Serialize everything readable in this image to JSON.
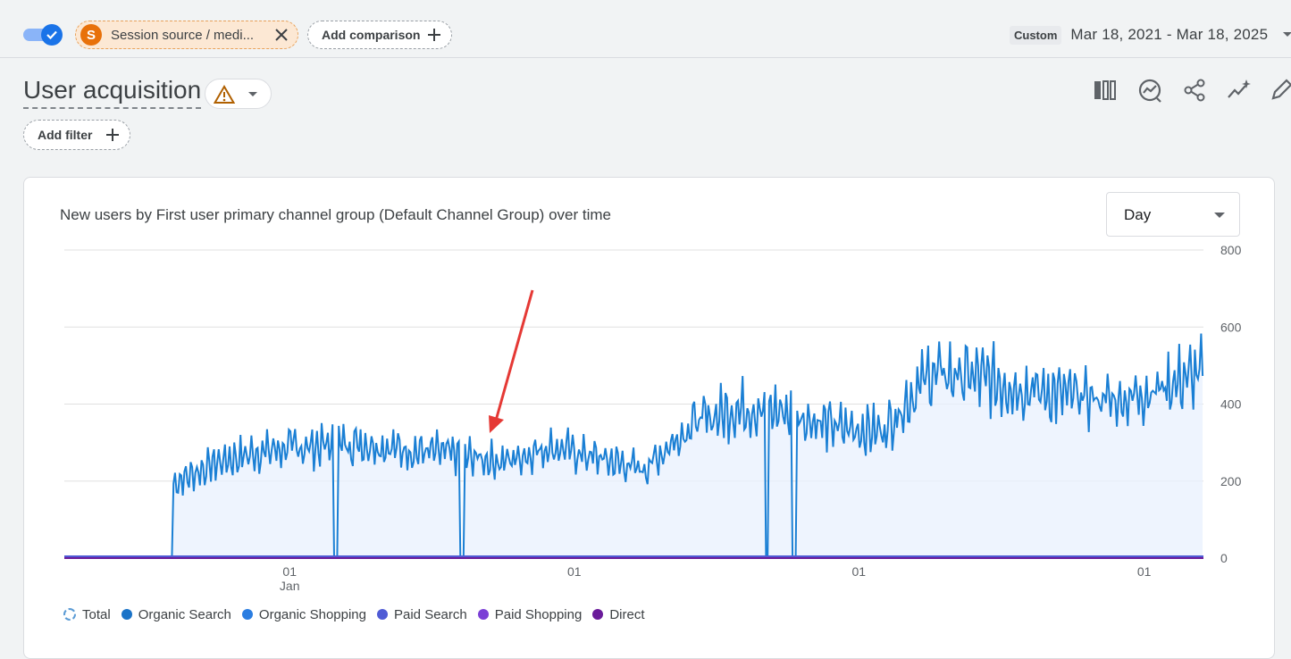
{
  "header": {
    "segment_avatar": "S",
    "segment_label": "Session source / medi...",
    "compare_label": "Add comparison",
    "date_badge": "Custom",
    "date_range": "Mar 18, 2021 - Mar 18, 2025"
  },
  "page": {
    "title": "User acquisition",
    "filter_label": "Add filter"
  },
  "card": {
    "title": "New users by First user primary channel group (Default Channel Group) over time",
    "granularity": "Day"
  },
  "colors": {
    "accent": "#1a73e8",
    "total_line": "#1a7fd4",
    "area_fill": "#e8f0fe",
    "warning": "#b06000",
    "session_chip": "#e8710a",
    "annotation_arrow": "#e53935"
  },
  "icons": [
    "compare-columns-icon",
    "insights-icon",
    "share-icon",
    "sparkle-trend-icon",
    "edit-icon"
  ],
  "chart_data": {
    "type": "line",
    "granularity": "Day",
    "ylim": [
      0,
      800
    ],
    "yticks": [
      0,
      200,
      400,
      600,
      800
    ],
    "xtick_labels": [
      {
        "label": "01",
        "sublabel": "Jan"
      },
      {
        "label": "01",
        "sublabel": ""
      },
      {
        "label": "01",
        "sublabel": ""
      },
      {
        "label": "01",
        "sublabel": ""
      }
    ],
    "legend": [
      "Total",
      "Organic Search",
      "Organic Shopping",
      "Paid Search",
      "Paid Shopping",
      "Direct"
    ],
    "legend_colors": [
      "#5b9bd5",
      "#1a73c8",
      "#2a7de1",
      "#4f5bd5",
      "#7b3fd6",
      "#6a1b9a"
    ],
    "series": [
      {
        "name": "Organic Search",
        "x": [
          "2021-03-18",
          "2021-06-01",
          "2021-08-01",
          "2021-10-01",
          "2021-12-01",
          "2022-02-01",
          "2022-04-01",
          "2022-06-01",
          "2022-08-01",
          "2022-10-01",
          "2022-12-01",
          "2023-02-01",
          "2023-04-01",
          "2023-06-01",
          "2023-08-01",
          "2023-10-01",
          "2023-12-01",
          "2024-02-01",
          "2024-04-01",
          "2024-06-01",
          "2024-08-01",
          "2024-10-01",
          "2024-12-01",
          "2025-01-15",
          "2025-03-18"
        ],
        "values": [
          0,
          0,
          190,
          250,
          280,
          290,
          300,
          280,
          270,
          250,
          290,
          260,
          230,
          350,
          390,
          380,
          340,
          330,
          480,
          470,
          440,
          420,
          410,
          440,
          480
        ]
      },
      {
        "name": "Direct",
        "x": [
          "2021-03-18",
          "2025-03-18"
        ],
        "values": [
          0,
          0
        ]
      }
    ],
    "annotation": "arrow"
  }
}
